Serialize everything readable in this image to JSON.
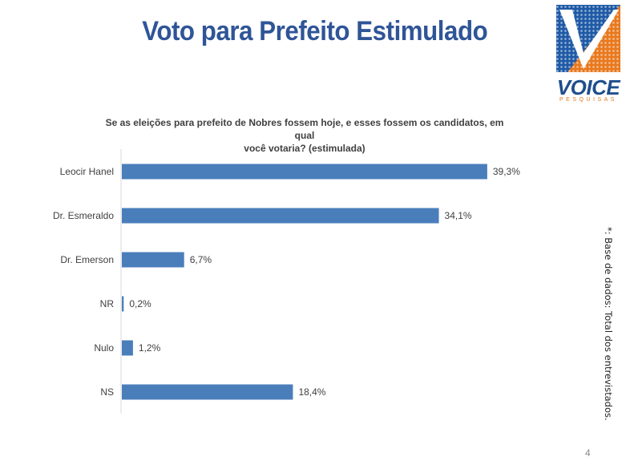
{
  "slide": {
    "title": "Voto para Prefeito Estimulado",
    "side_note": "*: Base de dados: Total dos  entrevistados.",
    "page_number": "4"
  },
  "logo": {
    "word": "VOICE",
    "sub": "PESQUISAS",
    "colors": {
      "blue": "#1f5aa6",
      "orange": "#e8791f",
      "white": "#ffffff"
    }
  },
  "chart_data": {
    "type": "bar",
    "orientation": "horizontal",
    "title": "Se as eleições para prefeito de Nobres fossem hoje, e esses fossem os candidatos, em qual você votaria? (estimulada)",
    "title_lines": [
      "Se as eleições para prefeito de Nobres fossem hoje, e esses fossem os candidatos, em qual",
      "você votaria? (estimulada)"
    ],
    "categories": [
      "Leocir Hanel",
      "Dr. Esmeraldo",
      "Dr. Emerson",
      "NR",
      "Nulo",
      "NS"
    ],
    "values": [
      39.3,
      34.1,
      6.7,
      0.2,
      1.2,
      18.4
    ],
    "data_labels": [
      "39,3%",
      "34,1%",
      "6,7%",
      "0,2%",
      "1,2%",
      "18,4%"
    ],
    "xlim": [
      0,
      40
    ],
    "bar_color": "#4a7ebb",
    "grid": false,
    "legend": "none"
  }
}
